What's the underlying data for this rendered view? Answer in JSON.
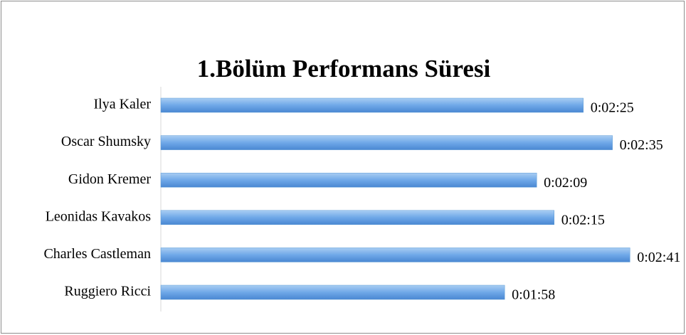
{
  "chart_data": {
    "type": "bar",
    "orientation": "horizontal",
    "title": "1.Bölüm Performans Süresi",
    "categories": [
      "Ilya Kaler",
      "Oscar Shumsky",
      "Gidon Kremer",
      "Leonidas Kavakos",
      "Charles Castleman",
      "Ruggiero Ricci"
    ],
    "values": [
      145,
      155,
      129,
      135,
      161,
      118
    ],
    "value_labels": [
      "0:02:25",
      "0:02:35",
      "0:02:09",
      "0:02:15",
      "0:02:41",
      "0:01:58"
    ],
    "color": "#5b9bd5",
    "xlim": [
      0,
      180
    ]
  }
}
